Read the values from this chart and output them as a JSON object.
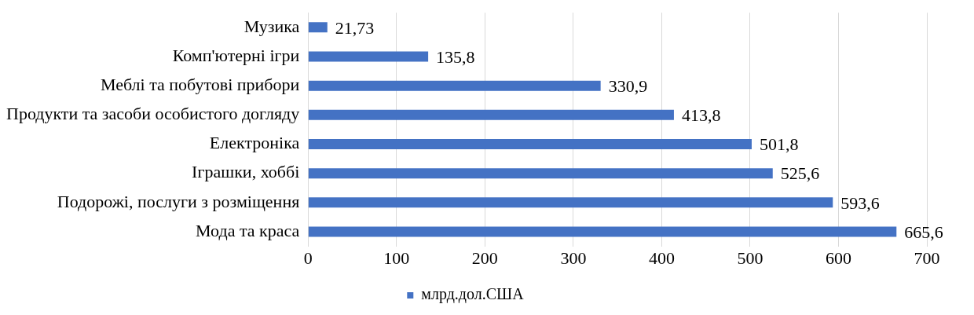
{
  "chart_data": {
    "type": "bar",
    "orientation": "horizontal",
    "categories": [
      "Музика",
      "Комп'ютерні ігри",
      "Меблі та побутові прибори",
      "Продукти та засоби особистого догляду",
      "Електроніка",
      "Іграшки, хоббі",
      "Подорожі, послуги з розміщення",
      "Мода та краса"
    ],
    "series": [
      {
        "name": "млрд.дол.США",
        "color": "#4472c4",
        "values": [
          21.73,
          135.8,
          330.9,
          413.8,
          501.8,
          525.6,
          593.6,
          665.6
        ],
        "value_labels": [
          "21,73",
          "135,8",
          "330,9",
          "413,8",
          "501,8",
          "525,6",
          "593,6",
          "665,6"
        ]
      }
    ],
    "xlim": [
      0,
      700
    ],
    "xticks": [
      0,
      100,
      200,
      300,
      400,
      500,
      600,
      700
    ],
    "grid": "x",
    "legend": "bottom"
  }
}
